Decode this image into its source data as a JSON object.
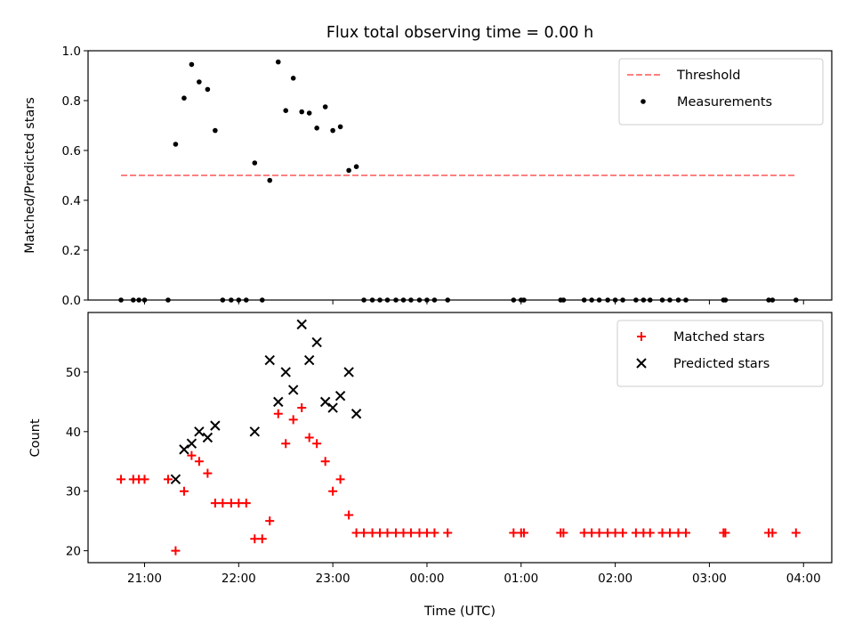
{
  "chart_data": {
    "title": "Flux total observing time = 0.00 h",
    "xlabel": "Time (UTC)",
    "x_unit": "hours relative to 00:00 UTC",
    "xlim": [
      -3.6,
      4.3
    ],
    "x_ticks": [
      -3,
      -2,
      -1,
      0,
      1,
      2,
      3,
      4
    ],
    "x_tick_labels": [
      "21:00",
      "22:00",
      "23:00",
      "00:00",
      "01:00",
      "02:00",
      "03:00",
      "04:00"
    ],
    "panels": [
      {
        "type": "scatter",
        "ylabel": "Matched/Predicted stars",
        "ylim": [
          0,
          1
        ],
        "y_ticks": [
          0,
          0.2,
          0.4,
          0.6,
          0.8,
          1.0
        ],
        "y_tick_labels": [
          "0.0",
          "0.2",
          "0.4",
          "0.6",
          "0.8",
          "1.0"
        ],
        "legend_position": "upper right",
        "threshold": {
          "name": "Threshold",
          "y": 0.5,
          "x_range": [
            -3.25,
            3.92
          ],
          "color": "#ff7f7f",
          "style": "dashed"
        },
        "series": [
          {
            "name": "Measurements",
            "marker": "dot",
            "color": "#000000",
            "points": [
              [
                -3.25,
                0
              ],
              [
                -3.12,
                0
              ],
              [
                -3.06,
                0
              ],
              [
                -3.0,
                0
              ],
              [
                -2.75,
                0
              ],
              [
                -2.67,
                0.625
              ],
              [
                -2.58,
                0.81
              ],
              [
                -2.5,
                0.945
              ],
              [
                -2.42,
                0.875
              ],
              [
                -2.33,
                0.845
              ],
              [
                -2.25,
                0.68
              ],
              [
                -2.17,
                0
              ],
              [
                -2.08,
                0
              ],
              [
                -2.0,
                0
              ],
              [
                -1.92,
                0
              ],
              [
                -1.83,
                0.55
              ],
              [
                -1.75,
                0
              ],
              [
                -1.67,
                0.48
              ],
              [
                -1.58,
                0.955
              ],
              [
                -1.5,
                0.76
              ],
              [
                -1.42,
                0.89
              ],
              [
                -1.33,
                0.755
              ],
              [
                -1.25,
                0.75
              ],
              [
                -1.17,
                0.69
              ],
              [
                -1.08,
                0.775
              ],
              [
                -1.0,
                0.68
              ],
              [
                -0.92,
                0.695
              ],
              [
                -0.83,
                0.52
              ],
              [
                -0.75,
                0.535
              ],
              [
                -0.67,
                0
              ],
              [
                -0.58,
                0
              ],
              [
                -0.5,
                0
              ],
              [
                -0.42,
                0
              ],
              [
                -0.33,
                0
              ],
              [
                -0.25,
                0
              ],
              [
                -0.17,
                0
              ],
              [
                -0.08,
                0
              ],
              [
                0.0,
                0
              ],
              [
                0.08,
                0
              ],
              [
                0.22,
                0
              ],
              [
                0.92,
                0
              ],
              [
                1.0,
                0
              ],
              [
                1.03,
                0
              ],
              [
                1.42,
                0
              ],
              [
                1.45,
                0
              ],
              [
                1.67,
                0
              ],
              [
                1.75,
                0
              ],
              [
                1.83,
                0
              ],
              [
                1.92,
                0
              ],
              [
                2.0,
                0
              ],
              [
                2.08,
                0
              ],
              [
                2.22,
                0
              ],
              [
                2.3,
                0
              ],
              [
                2.37,
                0
              ],
              [
                2.5,
                0
              ],
              [
                2.58,
                0
              ],
              [
                2.67,
                0
              ],
              [
                2.75,
                0
              ],
              [
                3.15,
                0
              ],
              [
                3.17,
                0
              ],
              [
                3.63,
                0
              ],
              [
                3.67,
                0
              ],
              [
                3.92,
                0
              ]
            ]
          }
        ]
      },
      {
        "type": "scatter",
        "ylabel": "Count",
        "ylim": [
          18,
          60
        ],
        "y_ticks": [
          20,
          30,
          40,
          50
        ],
        "y_tick_labels": [
          "20",
          "30",
          "40",
          "50"
        ],
        "legend_position": "upper right",
        "series": [
          {
            "name": "Matched stars",
            "marker": "plus",
            "color": "#ff0000",
            "points": [
              [
                -3.25,
                32
              ],
              [
                -3.12,
                32
              ],
              [
                -3.06,
                32
              ],
              [
                -3.0,
                32
              ],
              [
                -2.75,
                32
              ],
              [
                -2.67,
                20
              ],
              [
                -2.58,
                30
              ],
              [
                -2.5,
                36
              ],
              [
                -2.42,
                35
              ],
              [
                -2.33,
                33
              ],
              [
                -2.25,
                28
              ],
              [
                -2.17,
                28
              ],
              [
                -2.08,
                28
              ],
              [
                -2.0,
                28
              ],
              [
                -1.92,
                28
              ],
              [
                -1.83,
                22
              ],
              [
                -1.75,
                22
              ],
              [
                -1.67,
                25
              ],
              [
                -1.58,
                43
              ],
              [
                -1.5,
                38
              ],
              [
                -1.42,
                42
              ],
              [
                -1.33,
                44
              ],
              [
                -1.25,
                39
              ],
              [
                -1.17,
                38
              ],
              [
                -1.08,
                35
              ],
              [
                -1.0,
                30
              ],
              [
                -0.92,
                32
              ],
              [
                -0.83,
                26
              ],
              [
                -0.75,
                23
              ],
              [
                -0.67,
                23
              ],
              [
                -0.58,
                23
              ],
              [
                -0.5,
                23
              ],
              [
                -0.42,
                23
              ],
              [
                -0.33,
                23
              ],
              [
                -0.25,
                23
              ],
              [
                -0.17,
                23
              ],
              [
                -0.08,
                23
              ],
              [
                0.0,
                23
              ],
              [
                0.08,
                23
              ],
              [
                0.22,
                23
              ],
              [
                0.92,
                23
              ],
              [
                1.0,
                23
              ],
              [
                1.03,
                23
              ],
              [
                1.42,
                23
              ],
              [
                1.45,
                23
              ],
              [
                1.67,
                23
              ],
              [
                1.75,
                23
              ],
              [
                1.83,
                23
              ],
              [
                1.92,
                23
              ],
              [
                2.0,
                23
              ],
              [
                2.08,
                23
              ],
              [
                2.22,
                23
              ],
              [
                2.3,
                23
              ],
              [
                2.37,
                23
              ],
              [
                2.5,
                23
              ],
              [
                2.58,
                23
              ],
              [
                2.67,
                23
              ],
              [
                2.75,
                23
              ],
              [
                3.15,
                23
              ],
              [
                3.17,
                23
              ],
              [
                3.63,
                23
              ],
              [
                3.67,
                23
              ],
              [
                3.92,
                23
              ]
            ]
          },
          {
            "name": "Predicted stars",
            "marker": "x",
            "color": "#000000",
            "points": [
              [
                -2.67,
                32
              ],
              [
                -2.58,
                37
              ],
              [
                -2.5,
                38
              ],
              [
                -2.42,
                40
              ],
              [
                -2.33,
                39
              ],
              [
                -2.25,
                41
              ],
              [
                -1.83,
                40
              ],
              [
                -1.67,
                52
              ],
              [
                -1.58,
                45
              ],
              [
                -1.5,
                50
              ],
              [
                -1.42,
                47
              ],
              [
                -1.33,
                58
              ],
              [
                -1.25,
                52
              ],
              [
                -1.17,
                55
              ],
              [
                -1.08,
                45
              ],
              [
                -1.0,
                44
              ],
              [
                -0.92,
                46
              ],
              [
                -0.83,
                50
              ],
              [
                -0.75,
                43
              ]
            ]
          }
        ]
      }
    ]
  }
}
